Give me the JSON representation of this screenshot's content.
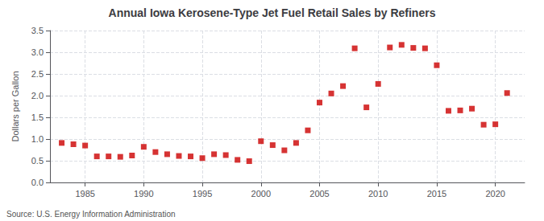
{
  "chart_data": {
    "type": "scatter",
    "title": "Annual Iowa Kerosene-Type Jet Fuel Retail Sales by Refiners",
    "ylabel": "Dollars per Gallon",
    "annotations": [
      "Source: U.S. Energy Information Administration"
    ],
    "color": "#cc0000",
    "marker": "square",
    "grid": true,
    "xlim": [
      1982,
      2022.5
    ],
    "ylim": [
      0.0,
      3.5
    ],
    "xticks": [
      1985,
      1990,
      1995,
      2000,
      2005,
      2010,
      2015,
      2020
    ],
    "yticks": [
      {
        "value": 0,
        "label": "0.0"
      },
      0.5,
      {
        "value": 1,
        "label": "1.0"
      },
      1.5,
      {
        "value": 2,
        "label": "2.0"
      },
      2.5,
      {
        "value": 3,
        "label": "3.0"
      },
      3.5
    ],
    "x": [
      1983,
      1984,
      1985,
      1986,
      1987,
      1988,
      1989,
      1990,
      1991,
      1992,
      1993,
      1994,
      1995,
      1996,
      1997,
      1998,
      1999,
      2000,
      2001,
      2002,
      2003,
      2004,
      2005,
      2006,
      2007,
      2008,
      2009,
      2010,
      2011,
      2012,
      2013,
      2014,
      2015,
      2016,
      2017,
      2018,
      2019,
      2020,
      2021
    ],
    "values": [
      0.91,
      0.88,
      0.85,
      0.6,
      0.6,
      0.59,
      0.62,
      0.82,
      0.7,
      0.65,
      0.61,
      0.6,
      0.56,
      0.65,
      0.63,
      0.52,
      0.49,
      0.95,
      0.86,
      0.74,
      0.91,
      1.2,
      1.84,
      2.05,
      2.22,
      3.09,
      1.73,
      2.27,
      3.11,
      3.17,
      3.1,
      3.09,
      2.7,
      1.65,
      1.66,
      1.7,
      1.33,
      1.34,
      2.06
    ]
  }
}
